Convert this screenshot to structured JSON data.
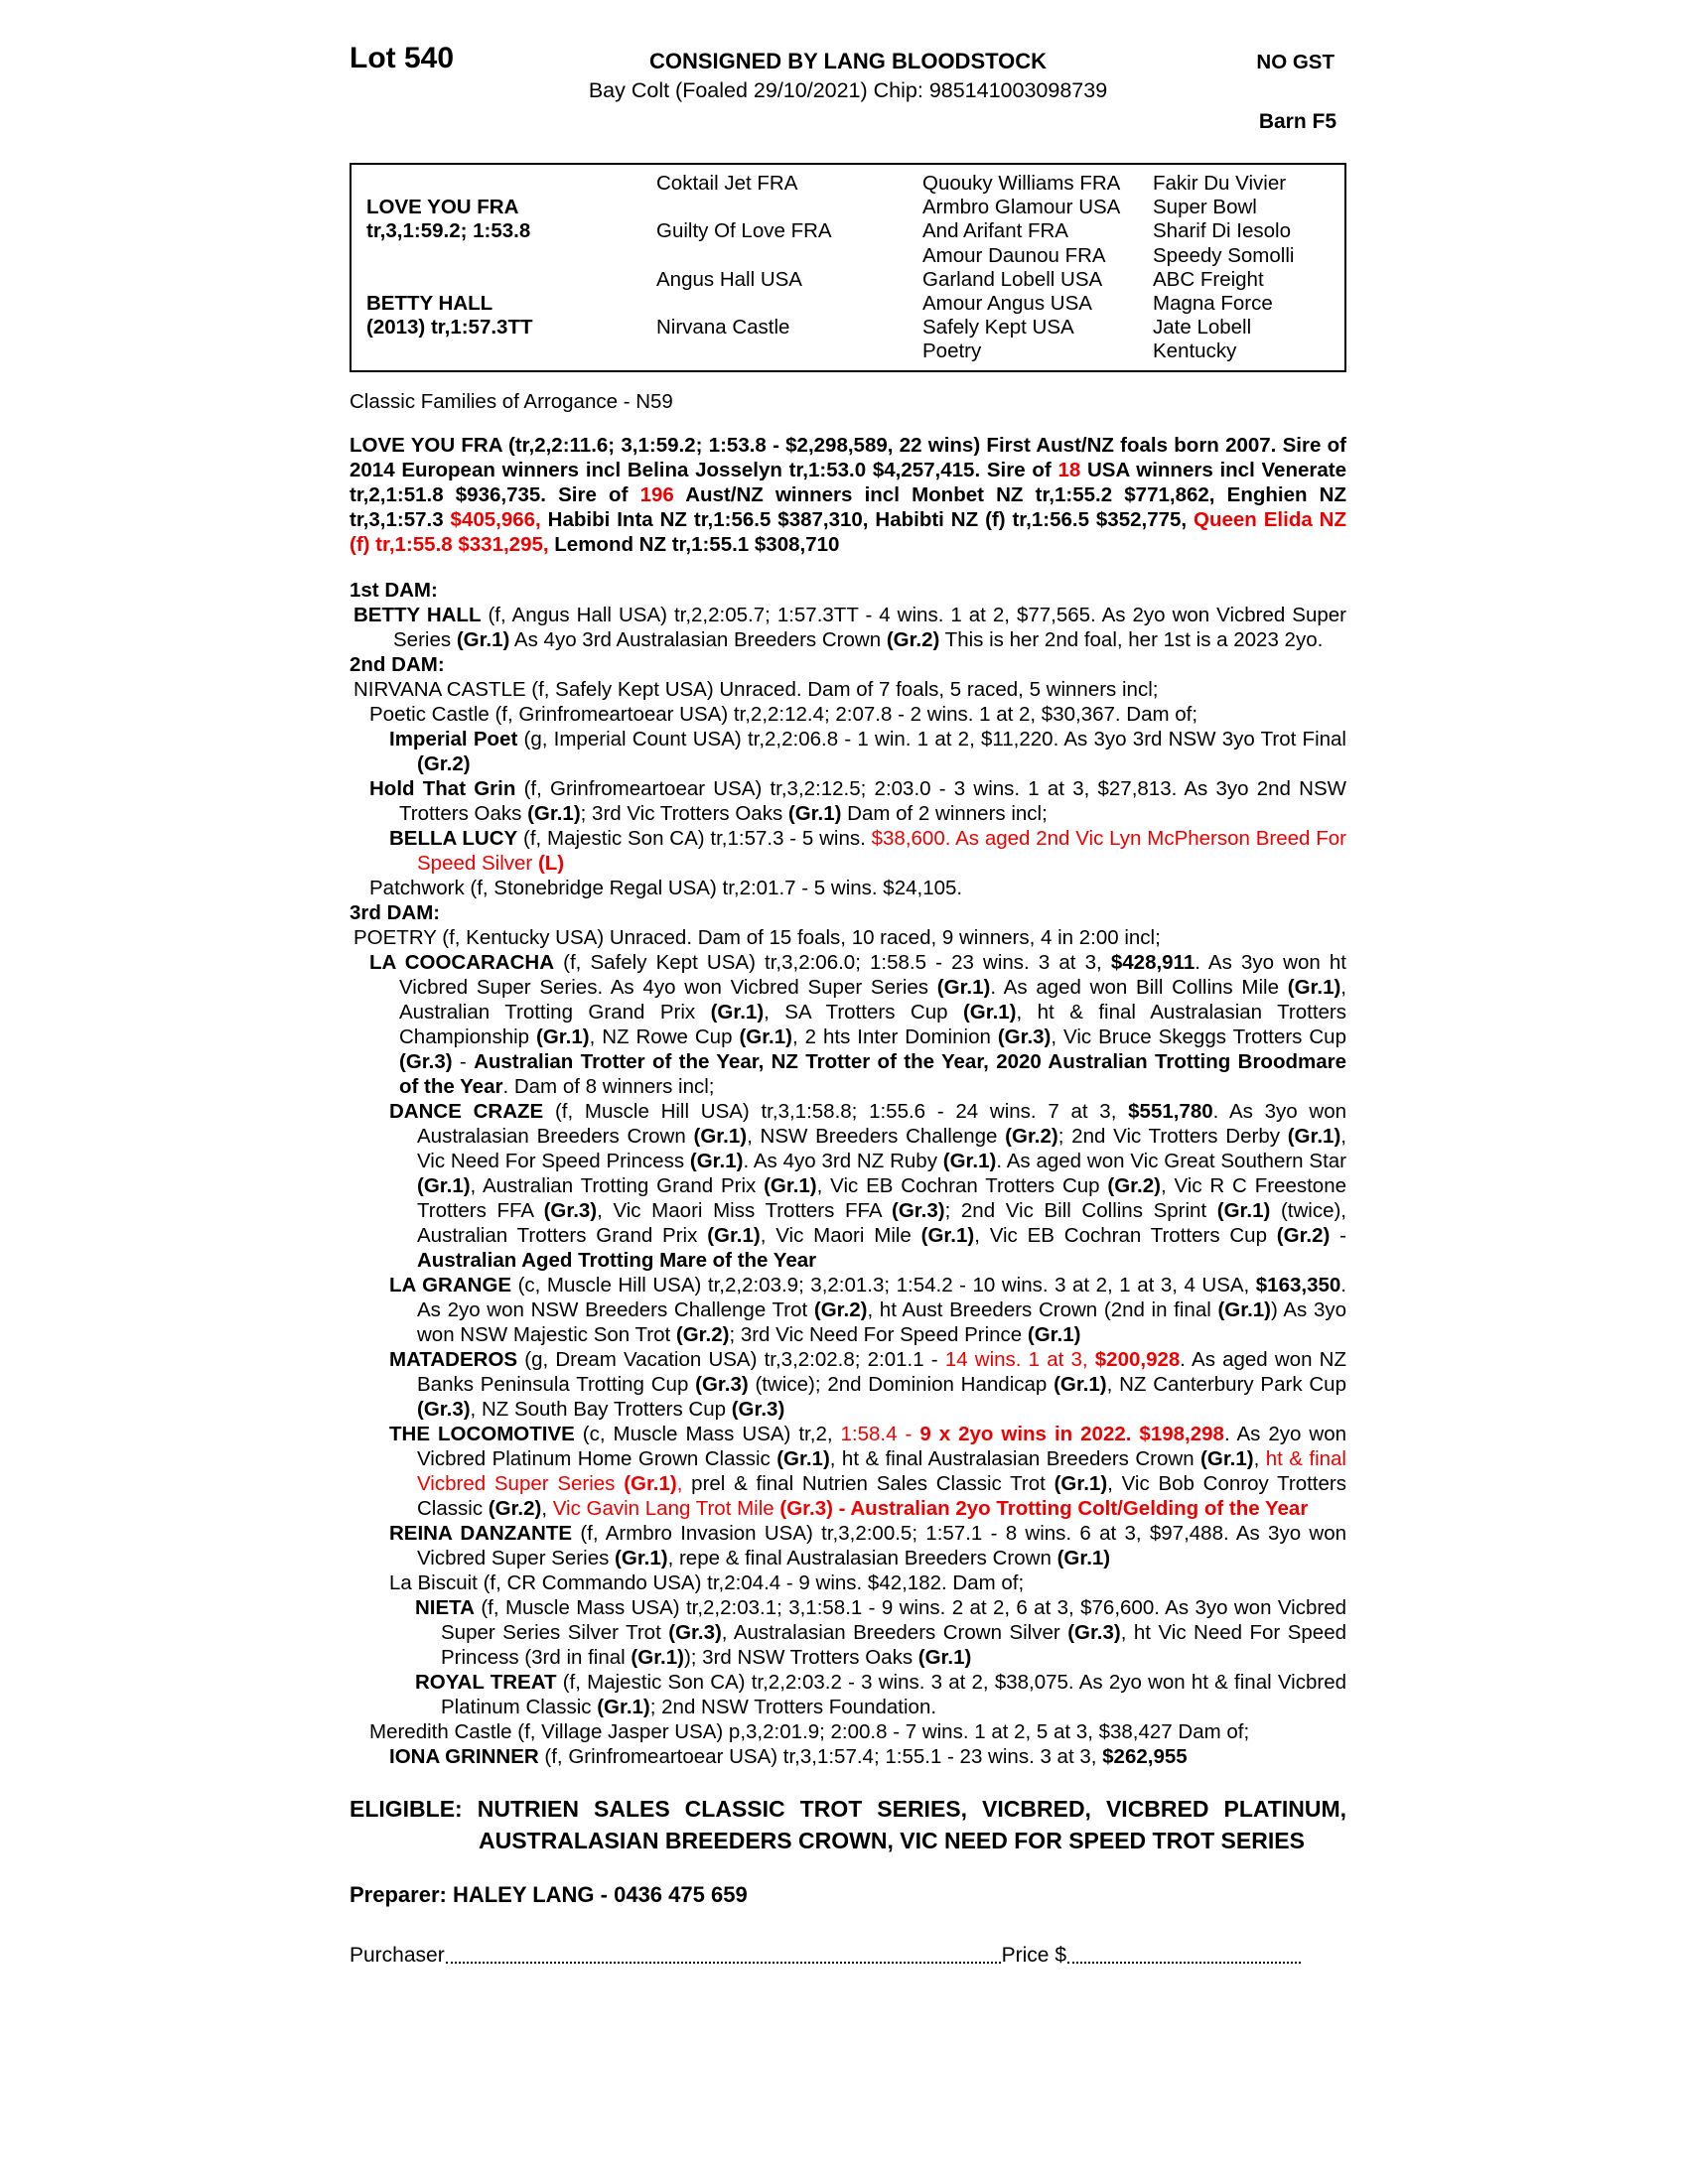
{
  "header": {
    "lot": "Lot 540",
    "consignor": "CONSIGNED BY LANG BLOODSTOCK",
    "no_gst": "NO GST",
    "subtitle": "Bay Colt (Foaled 29/10/2021) Chip: 985141003098739",
    "barn": "Barn F5"
  },
  "pedigree_table": {
    "sire": {
      "name": "LOVE YOU FRA",
      "record": "tr,3,1:59.2; 1:53.8"
    },
    "dam": {
      "name": "BETTY HALL",
      "record": "(2013) tr,1:57.3TT"
    },
    "gen2": [
      "Coktail Jet FRA",
      "Guilty Of Love FRA",
      "Angus Hall USA",
      "Nirvana Castle"
    ],
    "gen3": [
      "Quouky Williams FRA",
      "Armbro Glamour USA",
      "And Arifant FRA",
      "Amour Daunou FRA",
      "Garland Lobell USA",
      "Amour Angus USA",
      "Safely Kept USA",
      "Poetry"
    ],
    "gen4": [
      "Fakir Du Vivier",
      "Super Bowl",
      "Sharif Di Iesolo",
      "Speedy Somolli",
      "ABC Freight",
      "Magna Force",
      "Jate Lobell",
      "Kentucky"
    ]
  },
  "family_line": "Classic Families of Arrogance - N59",
  "sire_paragraph": {
    "segments": [
      {
        "t": "LOVE YOU FRA (tr,2,2:11.6; 3,1:59.2; 1:53.8 - $2,298,589, 22 wins) First Aust/NZ foals born 2007. Sire of 2014 European winners incl Belina Josselyn tr,1:53.0 $4,257,415. Sire of ",
        "b": 1
      },
      {
        "t": "18",
        "b": 1,
        "r": 1
      },
      {
        "t": " USA winners incl Venerate tr,2,1:51.8 $936,735. Sire of ",
        "b": 1
      },
      {
        "t": "196",
        "b": 1,
        "r": 1
      },
      {
        "t": " Aust/NZ winners incl Monbet NZ tr,1:55.2 $771,862, Enghien NZ tr,3,1:57.3 ",
        "b": 1
      },
      {
        "t": "$405,966,",
        "b": 1,
        "r": 1
      },
      {
        "t": " Habibi Inta NZ tr,1:56.5 $387,310, Habibti NZ (f) tr,1:56.5 $352,775, ",
        "b": 1
      },
      {
        "t": "Queen Elida NZ (f) tr,1:55.8 $331,295,",
        "b": 1,
        "r": 1
      },
      {
        "t": " Lemond NZ tr,1:55.1 $308,710",
        "b": 1
      }
    ]
  },
  "dam_sections": {
    "entries": [
      {
        "name": "heading-1st-dam",
        "style": "h",
        "segments": [
          {
            "t": "1st DAM:",
            "b": 1
          }
        ]
      },
      {
        "name": "entry-betty-hall",
        "style": "d0",
        "segments": [
          {
            "t": "BETTY HALL",
            "b": 1
          },
          {
            "t": " (f, Angus Hall USA) tr,2,2:05.7; 1:57.3TT - 4 wins. 1 at 2, $77,565. As 2yo won Vicbred Super Series "
          },
          {
            "t": "(Gr.1)",
            "b": 1
          },
          {
            "t": " As 4yo 3rd Australasian Breeders Crown "
          },
          {
            "t": "(Gr.2)",
            "b": 1
          },
          {
            "t": " This is her 2nd foal, her 1st is a 2023 2yo."
          }
        ]
      },
      {
        "name": "heading-2nd-dam",
        "style": "h",
        "segments": [
          {
            "t": "2nd DAM:",
            "b": 1
          }
        ]
      },
      {
        "name": "entry-nirvana-castle",
        "style": "d0",
        "segments": [
          {
            "t": "NIRVANA CASTLE (f, Safely Kept USA) Unraced. Dam of 7 foals, 5 raced, 5 winners incl;"
          }
        ]
      },
      {
        "name": "entry-poetic-castle",
        "style": "l1",
        "segments": [
          {
            "t": "Poetic Castle (f, Grinfromeartoear USA) tr,2,2:12.4; 2:07.8 - 2 wins. 1 at 2, $30,367. Dam of;"
          }
        ]
      },
      {
        "name": "entry-imperial-poet",
        "style": "l2",
        "segments": [
          {
            "t": "Imperial Poet",
            "b": 1
          },
          {
            "t": " (g, Imperial Count USA) tr,2,2:06.8 - 1 win. 1 at 2, $11,220. As 3yo 3rd NSW 3yo Trot Final "
          },
          {
            "t": "(Gr.2)",
            "b": 1
          }
        ]
      },
      {
        "name": "entry-hold-that-grin",
        "style": "l1",
        "segments": [
          {
            "t": "Hold That Grin",
            "b": 1
          },
          {
            "t": " (f, Grinfromeartoear USA) tr,3,2:12.5; 2:03.0 - 3 wins. 1 at 3, $27,813. As 3yo 2nd NSW Trotters Oaks "
          },
          {
            "t": "(Gr.1)",
            "b": 1
          },
          {
            "t": "; 3rd Vic Trotters Oaks "
          },
          {
            "t": "(Gr.1)",
            "b": 1
          },
          {
            "t": " Dam of 2 winners incl;"
          }
        ]
      },
      {
        "name": "entry-bella-lucy",
        "style": "l2",
        "segments": [
          {
            "t": "BELLA LUCY",
            "b": 1
          },
          {
            "t": " (f, Majestic Son CA) tr,1:57.3 - 5 wins. "
          },
          {
            "t": "$38,600. As aged 2nd Vic Lyn McPherson Breed For Speed Silver ",
            "r": 1
          },
          {
            "t": "(L)",
            "b": 1,
            "r": 1
          }
        ]
      },
      {
        "name": "entry-patchwork",
        "style": "l1",
        "segments": [
          {
            "t": "Patchwork (f, Stonebridge Regal USA) tr,2:01.7 - 5 wins. $24,105."
          }
        ]
      },
      {
        "name": "heading-3rd-dam",
        "style": "h",
        "segments": [
          {
            "t": "3rd DAM:",
            "b": 1
          }
        ]
      },
      {
        "name": "entry-poetry",
        "style": "d0",
        "segments": [
          {
            "t": "POETRY (f, Kentucky USA) Unraced. Dam of 15 foals, 10 raced, 9 winners, 4 in 2:00 incl;"
          }
        ]
      },
      {
        "name": "entry-la-coocaracha",
        "style": "l1",
        "segments": [
          {
            "t": "LA COOCARACHA",
            "b": 1
          },
          {
            "t": " (f, Safely Kept USA) tr,3,2:06.0; 1:58.5 - 23 wins. 3 at 3, "
          },
          {
            "t": "$428,911",
            "b": 1
          },
          {
            "t": ". As 3yo won ht Vicbred Super Series. As 4yo won Vicbred Super Series "
          },
          {
            "t": "(Gr.1)",
            "b": 1
          },
          {
            "t": ". As aged won Bill Collins Mile "
          },
          {
            "t": "(Gr.1)",
            "b": 1
          },
          {
            "t": ", Australian Trotting Grand Prix "
          },
          {
            "t": "(Gr.1)",
            "b": 1
          },
          {
            "t": ", SA Trotters Cup "
          },
          {
            "t": "(Gr.1)",
            "b": 1
          },
          {
            "t": ", ht & final Australasian Trotters Championship "
          },
          {
            "t": "(Gr.1)",
            "b": 1
          },
          {
            "t": ", NZ Rowe Cup "
          },
          {
            "t": "(Gr.1)",
            "b": 1
          },
          {
            "t": ", 2 hts Inter Dominion "
          },
          {
            "t": "(Gr.3)",
            "b": 1
          },
          {
            "t": ", Vic Bruce Skeggs Trotters Cup "
          },
          {
            "t": "(Gr.3)",
            "b": 1
          },
          {
            "t": " - "
          },
          {
            "t": "Australian Trotter of the Year, NZ Trotter of the Year, 2020 Australian Trotting Broodmare of the Year",
            "b": 1
          },
          {
            "t": ". Dam of 8 winners incl;"
          }
        ]
      },
      {
        "name": "entry-dance-craze",
        "style": "l2",
        "segments": [
          {
            "t": "DANCE CRAZE",
            "b": 1
          },
          {
            "t": " (f, Muscle Hill USA) tr,3,1:58.8; 1:55.6 - 24 wins. 7 at 3, "
          },
          {
            "t": "$551,780",
            "b": 1
          },
          {
            "t": ". As 3yo won Australasian Breeders Crown "
          },
          {
            "t": "(Gr.1)",
            "b": 1
          },
          {
            "t": ", NSW Breeders Challenge "
          },
          {
            "t": "(Gr.2)",
            "b": 1
          },
          {
            "t": "; 2nd Vic Trotters Derby "
          },
          {
            "t": "(Gr.1)",
            "b": 1
          },
          {
            "t": ", Vic Need For Speed Princess "
          },
          {
            "t": "(Gr.1)",
            "b": 1
          },
          {
            "t": ". As 4yo 3rd NZ Ruby "
          },
          {
            "t": "(Gr.1)",
            "b": 1
          },
          {
            "t": ". As aged won Vic Great Southern Star "
          },
          {
            "t": "(Gr.1)",
            "b": 1
          },
          {
            "t": ", Australian Trotting Grand Prix "
          },
          {
            "t": "(Gr.1)",
            "b": 1
          },
          {
            "t": ", Vic EB Cochran Trotters Cup "
          },
          {
            "t": "(Gr.2)",
            "b": 1
          },
          {
            "t": ", Vic R C Freestone Trotters FFA "
          },
          {
            "t": "(Gr.3)",
            "b": 1
          },
          {
            "t": ", Vic Maori Miss Trotters FFA "
          },
          {
            "t": "(Gr.3)",
            "b": 1
          },
          {
            "t": "; 2nd Vic Bill Collins Sprint "
          },
          {
            "t": "(Gr.1)",
            "b": 1
          },
          {
            "t": " (twice), Australian Trotters Grand Prix "
          },
          {
            "t": "(Gr.1)",
            "b": 1
          },
          {
            "t": ", Vic Maori Mile "
          },
          {
            "t": "(Gr.1)",
            "b": 1
          },
          {
            "t": ", Vic EB Cochran Trotters Cup "
          },
          {
            "t": "(Gr.2)",
            "b": 1
          },
          {
            "t": " - "
          },
          {
            "t": "Australian Aged Trotting Mare of the Year",
            "b": 1
          }
        ]
      },
      {
        "name": "entry-la-grange",
        "style": "l2",
        "segments": [
          {
            "t": "LA GRANGE",
            "b": 1
          },
          {
            "t": " (c, Muscle Hill USA) tr,2,2:03.9; 3,2:01.3; 1:54.2 - 10 wins. 3 at 2, 1 at 3, 4 USA, "
          },
          {
            "t": "$163,350",
            "b": 1
          },
          {
            "t": ". As 2yo won NSW Breeders Challenge Trot "
          },
          {
            "t": "(Gr.2)",
            "b": 1
          },
          {
            "t": ", ht Aust Breeders Crown (2nd in final "
          },
          {
            "t": "(Gr.1)",
            "b": 1
          },
          {
            "t": ") As 3yo won NSW Majestic Son Trot "
          },
          {
            "t": "(Gr.2)",
            "b": 1
          },
          {
            "t": "; 3rd Vic Need For Speed Prince "
          },
          {
            "t": "(Gr.1)",
            "b": 1
          }
        ]
      },
      {
        "name": "entry-mataderos",
        "style": "l2",
        "segments": [
          {
            "t": "MATADEROS",
            "b": 1
          },
          {
            "t": " (g, Dream Vacation USA) tr,3,2:02.8; 2:01.1 - "
          },
          {
            "t": "14 wins. 1 at 3, ",
            "r": 1
          },
          {
            "t": "$200,928",
            "b": 1,
            "r": 1
          },
          {
            "t": ". As aged won NZ Banks Peninsula Trotting Cup "
          },
          {
            "t": "(Gr.3)",
            "b": 1
          },
          {
            "t": " (twice); 2nd Dominion Handicap "
          },
          {
            "t": "(Gr.1)",
            "b": 1
          },
          {
            "t": ", NZ Canterbury Park Cup "
          },
          {
            "t": "(Gr.3)",
            "b": 1
          },
          {
            "t": ", NZ South Bay Trotters Cup "
          },
          {
            "t": "(Gr.3)",
            "b": 1
          }
        ]
      },
      {
        "name": "entry-the-locomotive",
        "style": "l2",
        "segments": [
          {
            "t": "THE LOCOMOTIVE",
            "b": 1
          },
          {
            "t": " (c, Muscle Mass USA) tr,2, "
          },
          {
            "t": "1:58.4 - ",
            "r": 1
          },
          {
            "t": "9 x 2yo wins in 2022. $198,298",
            "b": 1,
            "r": 1
          },
          {
            "t": ". As 2yo won Vicbred Platinum Home Grown Classic "
          },
          {
            "t": "(Gr.1)",
            "b": 1
          },
          {
            "t": ", ht & final Australasian Breeders Crown "
          },
          {
            "t": "(Gr.1)",
            "b": 1
          },
          {
            "t": ", "
          },
          {
            "t": "ht & final Vicbred Super Series ",
            "r": 1
          },
          {
            "t": "(Gr.1)",
            "b": 1,
            "r": 1
          },
          {
            "t": ",",
            "r": 1
          },
          {
            "t": " prel & final Nutrien Sales Classic Trot "
          },
          {
            "t": "(Gr.1)",
            "b": 1
          },
          {
            "t": ", Vic Bob Conroy Trotters Classic "
          },
          {
            "t": "(Gr.2)",
            "b": 1
          },
          {
            "t": ", "
          },
          {
            "t": "Vic Gavin Lang Trot Mile ",
            "r": 1
          },
          {
            "t": "(Gr.3)",
            "b": 1,
            "r": 1
          },
          {
            "t": " - Australian 2yo Trotting Colt/Gelding of the Year",
            "b": 1,
            "r": 1
          }
        ]
      },
      {
        "name": "entry-reina-danzante",
        "style": "l2",
        "segments": [
          {
            "t": "REINA DANZANTE",
            "b": 1
          },
          {
            "t": " (f, Armbro Invasion USA) tr,3,2:00.5; 1:57.1 - 8 wins. 6 at 3, $97,488. As 3yo won Vicbred Super Series "
          },
          {
            "t": "(Gr.1)",
            "b": 1
          },
          {
            "t": ", repe & final Australasian Breeders Crown "
          },
          {
            "t": "(Gr.1)",
            "b": 1
          }
        ]
      },
      {
        "name": "entry-la-biscuit",
        "style": "l2",
        "segments": [
          {
            "t": "La Biscuit (f, CR Commando USA) tr,2:04.4 - 9 wins. $42,182. Dam of;"
          }
        ]
      },
      {
        "name": "entry-nieta",
        "style": "l3",
        "segments": [
          {
            "t": "NIETA",
            "b": 1
          },
          {
            "t": " (f, Muscle Mass USA) tr,2,2:03.1; 3,1:58.1 - 9 wins. 2 at 2, 6 at 3, $76,600. As 3yo won Vicbred Super Series Silver Trot "
          },
          {
            "t": "(Gr.3)",
            "b": 1
          },
          {
            "t": ", Australasian Breeders Crown Silver "
          },
          {
            "t": "(Gr.3)",
            "b": 1
          },
          {
            "t": ", ht Vic Need For Speed Princess (3rd in final "
          },
          {
            "t": "(Gr.1)",
            "b": 1
          },
          {
            "t": "); 3rd NSW Trotters Oaks "
          },
          {
            "t": "(Gr.1)",
            "b": 1
          }
        ]
      },
      {
        "name": "entry-royal-treat",
        "style": "l3",
        "segments": [
          {
            "t": "ROYAL TREAT",
            "b": 1
          },
          {
            "t": " (f, Majestic Son CA) tr,2,2:03.2 - 3 wins. 3 at 2, $38,075. As 2yo won ht & final Vicbred Platinum Classic "
          },
          {
            "t": "(Gr.1)",
            "b": 1
          },
          {
            "t": "; 2nd NSW Trotters Foundation."
          }
        ]
      },
      {
        "name": "entry-meredith-castle",
        "style": "l1",
        "segments": [
          {
            "t": "Meredith Castle (f, Village Jasper USA) p,3,2:01.9; 2:00.8 - 7 wins. 1 at 2, 5 at 3, $38,427 Dam of;"
          }
        ]
      },
      {
        "name": "entry-iona-grinner",
        "style": "l2",
        "segments": [
          {
            "t": "IONA GRINNER",
            "b": 1
          },
          {
            "t": " (f, Grinfromeartoear USA) tr,3,1:57.4; 1:55.1 - 23 wins. 3 at 3, "
          },
          {
            "t": "$262,955",
            "b": 1
          }
        ]
      }
    ]
  },
  "eligible": {
    "segments": [
      {
        "t": "ELIGIBLE:",
        "b": 1
      },
      {
        "t": " NUTRIEN SALES CLASSIC TROT SERIES, VICBRED, VICBRED PLATINUM, AUSTRALASIAN BREEDERS CROWN, VIC NEED FOR SPEED TROT SERIES",
        "b": 1
      }
    ]
  },
  "footer": {
    "preparer": "Preparer: HALEY LANG - 0436 475 659",
    "purchaser_label": "Purchaser",
    "price_label": "Price $"
  },
  "colors": {
    "accent_red": "#ee0000",
    "text": "#000000"
  }
}
